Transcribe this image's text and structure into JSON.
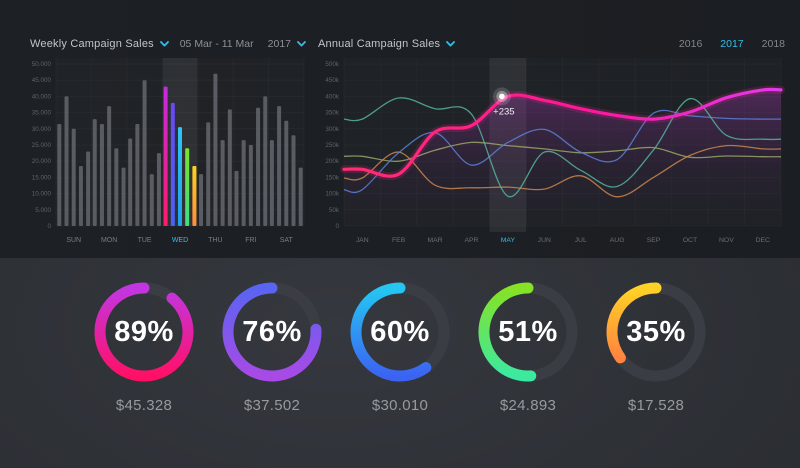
{
  "accent": "#35bde8",
  "weekly": {
    "title": "Weekly Campaign Sales",
    "date_range": "05 Mar - 11 Mar",
    "year": "2017"
  },
  "annual": {
    "title": "Annual Campaign Sales",
    "years": [
      "2016",
      "2017",
      "2018"
    ],
    "selected_year": "2017"
  },
  "chart_data": [
    {
      "name": "weekly-campaign-sales",
      "type": "bar",
      "ylim": [
        0,
        50000
      ],
      "y_ticks": [
        "50.000",
        "45.000",
        "40.000",
        "35.000",
        "30.000",
        "25.000",
        "20.000",
        "15.000",
        "10.000",
        "5.000",
        "0"
      ],
      "categories": [
        "SUN",
        "MON",
        "TUE",
        "WED",
        "THU",
        "FRI",
        "SAT"
      ],
      "highlighted_category": "WED",
      "groups": [
        {
          "day": "SUN",
          "values": [
            31500,
            40000,
            30000,
            18500,
            23000
          ]
        },
        {
          "day": "MON",
          "values": [
            33000,
            31500,
            37000,
            24000,
            18000
          ]
        },
        {
          "day": "TUE",
          "values": [
            27000,
            31500,
            45000,
            16000,
            22500
          ]
        },
        {
          "day": "WED",
          "values": [
            43000,
            38000,
            30500,
            24000,
            18500
          ]
        },
        {
          "day": "THU",
          "values": [
            16000,
            32000,
            47000,
            26500,
            36000
          ]
        },
        {
          "day": "FRI",
          "values": [
            17000,
            26500,
            25000,
            36500,
            40000
          ]
        },
        {
          "day": "SAT",
          "values": [
            26500,
            37000,
            32500,
            28000,
            18000
          ]
        }
      ],
      "bar_color": "#686c72",
      "highlight_gradients": [
        [
          "#c42be0",
          "#ff1b6b"
        ],
        [
          "#6b48f2",
          "#4a62f5"
        ],
        [
          "#2ec6f5",
          "#1f9ff0"
        ],
        [
          "#79e22d",
          "#3fdc84"
        ],
        [
          "#ffd21f",
          "#ff8d3a"
        ]
      ],
      "grid": true
    },
    {
      "name": "annual-campaign-sales",
      "type": "line",
      "ylim": [
        0,
        500000
      ],
      "y_ticks": [
        "500k",
        "450k",
        "400k",
        "350k",
        "300k",
        "250k",
        "200k",
        "150k",
        "100k",
        "50k",
        "0"
      ],
      "x": [
        "JAN",
        "FEB",
        "MAR",
        "APR",
        "MAY",
        "JUN",
        "JUL",
        "AUG",
        "SEP",
        "OCT",
        "NOV",
        "DEC"
      ],
      "highlighted_month": "MAY",
      "annotation": {
        "text": "+235",
        "month": "MAY",
        "value": 400000
      },
      "series": [
        {
          "name": "main-campaign",
          "thick": true,
          "area": true,
          "color_stops": [
            "#ff2e6e",
            "#ff169a",
            "#e239ee"
          ],
          "values": [
            175000,
            160000,
            290000,
            310000,
            400000,
            388000,
            362000,
            341000,
            330000,
            352000,
            396000,
            420000
          ]
        },
        {
          "name": "series-teal",
          "color": "#55b39b",
          "values": [
            330000,
            395000,
            362000,
            345000,
            92000,
            228000,
            172000,
            122000,
            235000,
            393000,
            280000,
            268000
          ]
        },
        {
          "name": "series-blue",
          "color": "#5c7fd8",
          "values": [
            112000,
            226000,
            288000,
            188000,
            258000,
            298000,
            228000,
            205000,
            348000,
            340000,
            332000,
            330000
          ]
        },
        {
          "name": "series-orange",
          "color": "#c9854e",
          "values": [
            148000,
            228000,
            126000,
            118000,
            120000,
            114000,
            155000,
            90000,
            150000,
            218000,
            248000,
            238000
          ]
        },
        {
          "name": "series-olive",
          "color": "#9aa468",
          "values": [
            215000,
            200000,
            234000,
            258000,
            248000,
            238000,
            226000,
            232000,
            242000,
            212000,
            216000,
            214000
          ]
        }
      ],
      "grid": true
    },
    {
      "name": "campaign-progress-donuts",
      "type": "donut",
      "track_color": "#3a3d43",
      "items": [
        {
          "percent": 89,
          "label": "89%",
          "value": "$45.328",
          "gradient": [
            "#c236e2",
            "#ff1066"
          ]
        },
        {
          "percent": 76,
          "label": "76%",
          "value": "$37.502",
          "gradient": [
            "#5a64f2",
            "#a84ae6"
          ]
        },
        {
          "percent": 60,
          "label": "60%",
          "value": "$30.010",
          "gradient": [
            "#25c7f2",
            "#3b63f2"
          ]
        },
        {
          "percent": 51,
          "label": "51%",
          "value": "$24.893",
          "gradient": [
            "#86e225",
            "#3ce9a1"
          ]
        },
        {
          "percent": 35,
          "label": "35%",
          "value": "$17.528",
          "gradient": [
            "#ffd226",
            "#ff8440"
          ]
        }
      ]
    }
  ]
}
